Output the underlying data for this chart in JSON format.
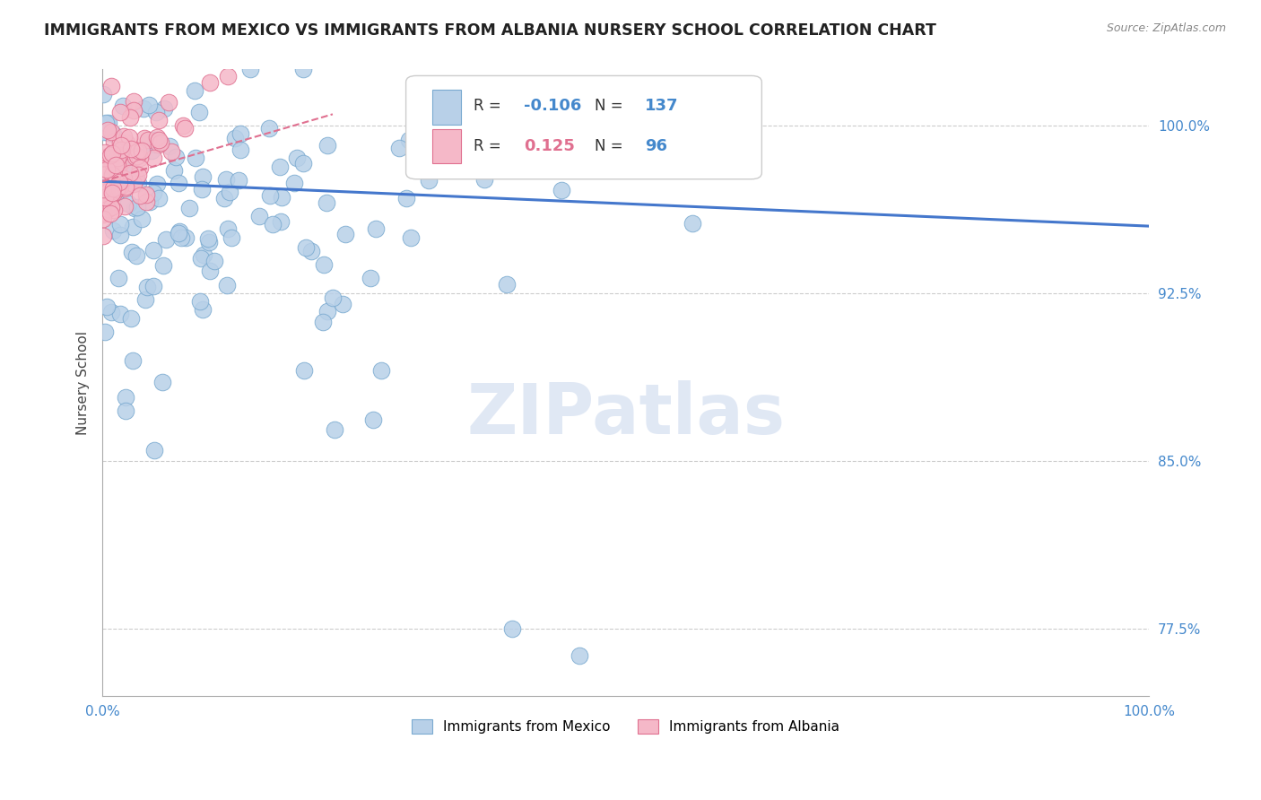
{
  "title": "IMMIGRANTS FROM MEXICO VS IMMIGRANTS FROM ALBANIA NURSERY SCHOOL CORRELATION CHART",
  "source": "Source: ZipAtlas.com",
  "ylabel": "Nursery School",
  "ytick_vals": [
    1.0,
    0.925,
    0.85,
    0.775
  ],
  "ytick_labels": [
    "100.0%",
    "92.5%",
    "85.0%",
    "77.5%"
  ],
  "xlim": [
    0.0,
    1.0
  ],
  "ylim": [
    0.745,
    1.025
  ],
  "mexico_R": -0.106,
  "mexico_N": 137,
  "albania_R": 0.125,
  "albania_N": 96,
  "mexico_color": "#b8d0e8",
  "mexico_edge": "#7aaad0",
  "albania_color": "#f5b8c8",
  "albania_edge": "#e07090",
  "mexico_line_color": "#4477cc",
  "albania_line_color": "#e07090",
  "legend_mexico_label": "Immigrants from Mexico",
  "legend_albania_label": "Immigrants from Albania",
  "watermark": "ZIPatlas",
  "background_color": "#ffffff",
  "title_color": "#222222",
  "title_fontsize": 12.5,
  "axis_label_color": "#444444",
  "tick_color": "#4488cc",
  "grid_color": "#cccccc",
  "seed": 42,
  "mexico_trend_x0": 0.0,
  "mexico_trend_y0": 0.975,
  "mexico_trend_x1": 1.0,
  "mexico_trend_y1": 0.955,
  "albania_trend_x0": 0.0,
  "albania_trend_y0": 0.975,
  "albania_trend_x1": 0.22,
  "albania_trend_y1": 1.005
}
